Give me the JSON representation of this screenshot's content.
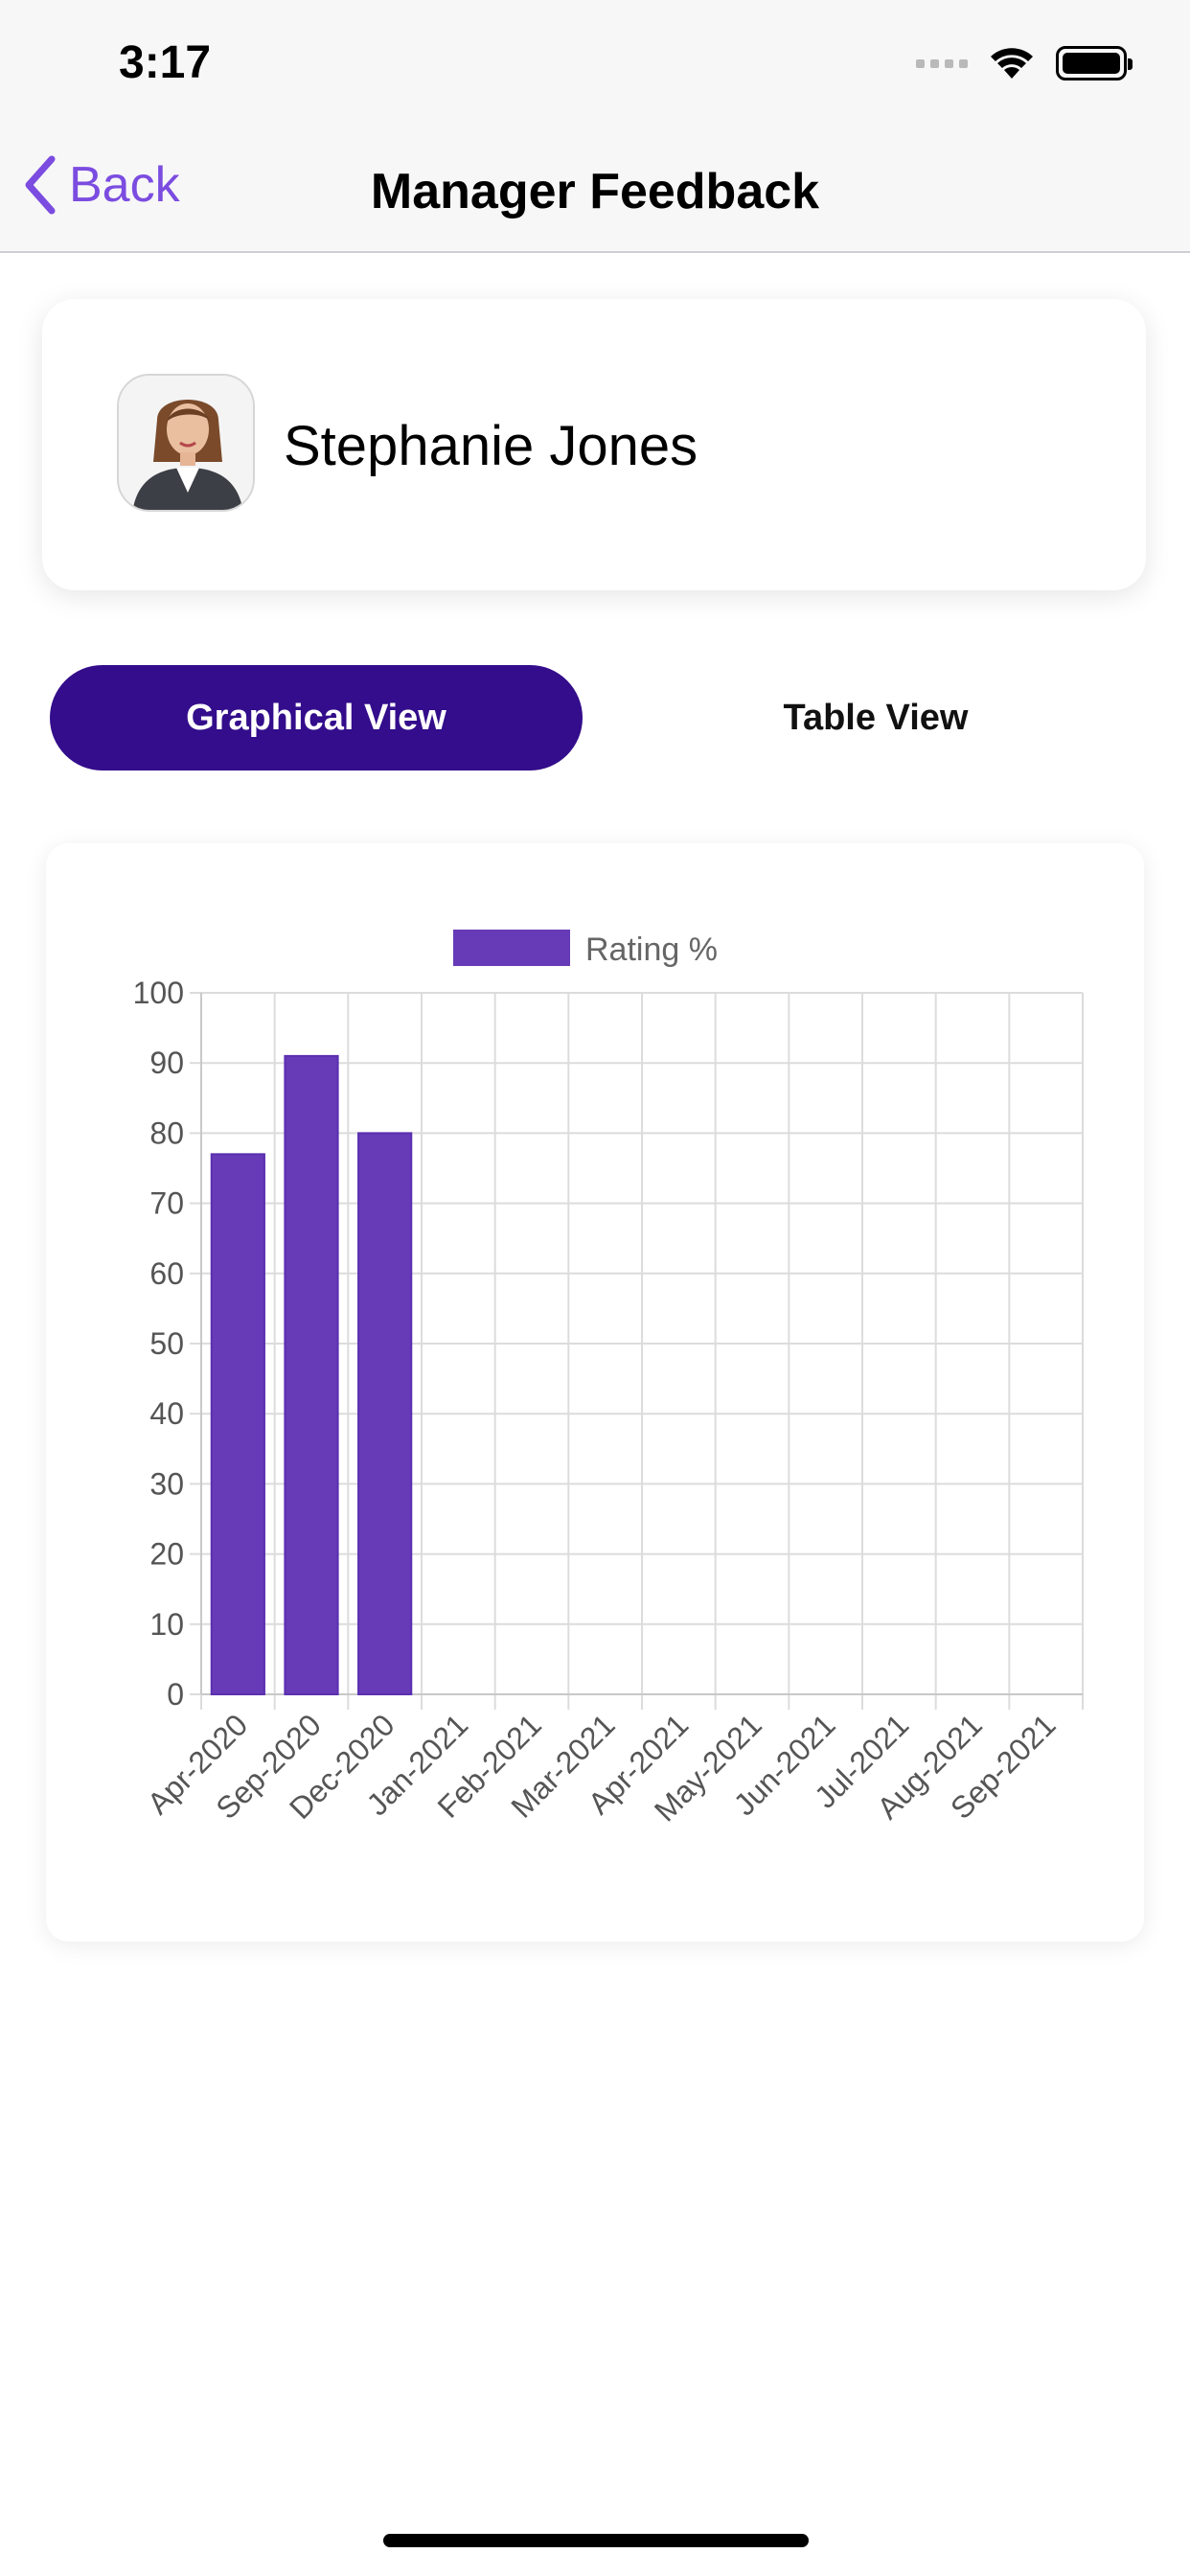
{
  "status_bar": {
    "time": "3:17"
  },
  "nav": {
    "back_label": "Back",
    "title": "Manager Feedback"
  },
  "profile": {
    "name": "Stephanie Jones"
  },
  "view_toggle": {
    "graphical": "Graphical View",
    "table": "Table View",
    "selected": "graphical"
  },
  "colors": {
    "accent": "#7b4ce0",
    "segment_active": "#330d8b",
    "bar": "#673ab7",
    "grid": "#dcdcdc"
  },
  "chart_data": {
    "type": "bar",
    "legend": "Rating %",
    "legend_position": "top",
    "categories": [
      "Apr-2020",
      "Sep-2020",
      "Dec-2020",
      "Jan-2021",
      "Feb-2021",
      "Mar-2021",
      "Apr-2021",
      "May-2021",
      "Jun-2021",
      "Jul-2021",
      "Aug-2021",
      "Sep-2021"
    ],
    "series": [
      {
        "name": "Rating %",
        "values": [
          77,
          91,
          80,
          null,
          null,
          null,
          null,
          null,
          null,
          null,
          null,
          null
        ]
      }
    ],
    "ylim": [
      0,
      100
    ],
    "yticks": [
      0,
      10,
      20,
      30,
      40,
      50,
      60,
      70,
      80,
      90,
      100
    ],
    "grid": true
  }
}
